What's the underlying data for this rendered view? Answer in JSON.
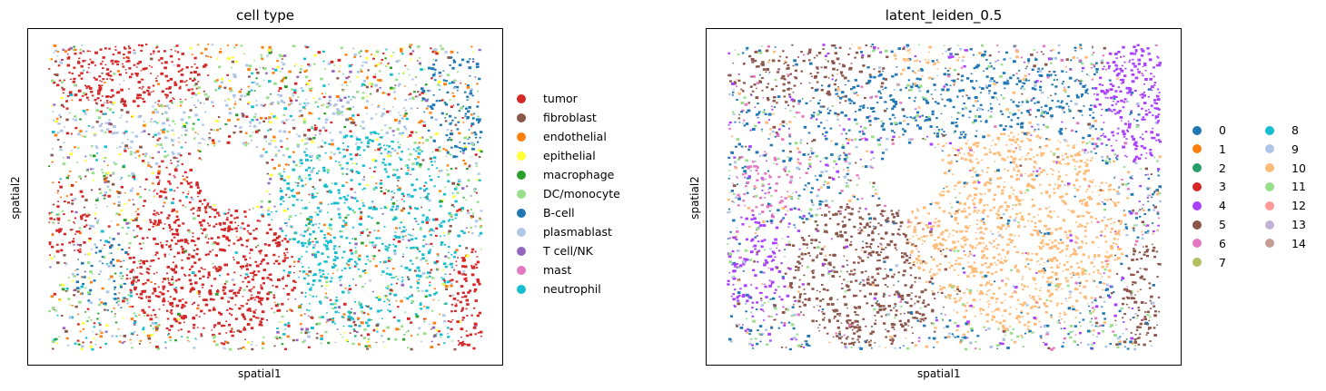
{
  "chart_data": [
    {
      "type": "scatter",
      "title": "cell type",
      "xlabel": "spatial1",
      "ylabel": "spatial2",
      "grid": false,
      "legend_placement": "right",
      "legend": [
        {
          "label": "tumor",
          "color": "#d62728"
        },
        {
          "label": "fibroblast",
          "color": "#8c564b"
        },
        {
          "label": "endothelial",
          "color": "#ff7f0e"
        },
        {
          "label": "epithelial",
          "color": "#ffff33"
        },
        {
          "label": "macrophage",
          "color": "#2ca02c"
        },
        {
          "label": "DC/monocyte",
          "color": "#98df8a"
        },
        {
          "label": "B-cell",
          "color": "#1f77b4"
        },
        {
          "label": "plasmablast",
          "color": "#aec7e8"
        },
        {
          "label": "T cell/NK",
          "color": "#9467bd"
        },
        {
          "label": "mast",
          "color": "#e377c2"
        },
        {
          "label": "neutrophil",
          "color": "#17becf"
        }
      ]
    },
    {
      "type": "scatter",
      "title": "latent_leiden_0.5",
      "xlabel": "spatial1",
      "ylabel": "spatial2",
      "grid": false,
      "legend_placement": "right",
      "legend": [
        {
          "label": "0",
          "color": "#1f77b4"
        },
        {
          "label": "1",
          "color": "#ff7f0e"
        },
        {
          "label": "2",
          "color": "#279e68"
        },
        {
          "label": "3",
          "color": "#d62728"
        },
        {
          "label": "4",
          "color": "#aa40fc"
        },
        {
          "label": "5",
          "color": "#8c564b"
        },
        {
          "label": "6",
          "color": "#e377c2"
        },
        {
          "label": "7",
          "color": "#b5bd61"
        },
        {
          "label": "8",
          "color": "#17becf"
        },
        {
          "label": "9",
          "color": "#aec7e8"
        },
        {
          "label": "10",
          "color": "#ffbb78"
        },
        {
          "label": "11",
          "color": "#98df8a"
        },
        {
          "label": "12",
          "color": "#ff9896"
        },
        {
          "label": "13",
          "color": "#c5b0d5"
        },
        {
          "label": "14",
          "color": "#c49c94"
        }
      ]
    }
  ]
}
